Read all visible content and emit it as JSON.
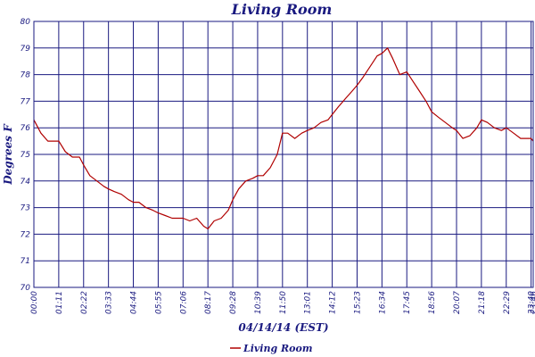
{
  "chart_data": {
    "type": "line",
    "title": "Living Room",
    "xlabel": "04/14/14 (EST)",
    "ylabel": "Degrees F",
    "x_tick_labels": [
      "00:00",
      "01:11",
      "02:22",
      "03:33",
      "04:44",
      "05:55",
      "07:06",
      "08:17",
      "09:28",
      "10:39",
      "11:50",
      "13:01",
      "14:12",
      "15:23",
      "16:34",
      "17:45",
      "18:56",
      "20:07",
      "21:18",
      "22:29",
      "23:40",
      "23:46"
    ],
    "y_ticks": [
      70,
      71,
      72,
      73,
      74,
      75,
      76,
      77,
      78,
      79,
      80
    ],
    "ylim": [
      70,
      80
    ],
    "xlim": [
      "00:00",
      "23:46"
    ],
    "grid": true,
    "legend_position": "bottom-center",
    "colors": {
      "line": "#b00000",
      "grid": "#1a1a80",
      "text": "#1a1a80"
    },
    "series": [
      {
        "name": "Living Room",
        "x": [
          "00:00",
          "00:20",
          "00:40",
          "01:11",
          "01:30",
          "01:50",
          "02:10",
          "02:22",
          "02:40",
          "03:00",
          "03:20",
          "03:33",
          "03:50",
          "04:10",
          "04:30",
          "04:44",
          "05:00",
          "05:20",
          "05:40",
          "05:55",
          "06:15",
          "06:35",
          "06:55",
          "07:06",
          "07:25",
          "07:45",
          "08:05",
          "08:17",
          "08:35",
          "08:55",
          "09:15",
          "09:28",
          "09:45",
          "10:05",
          "10:25",
          "10:39",
          "10:55",
          "11:15",
          "11:35",
          "11:50",
          "12:05",
          "12:25",
          "12:45",
          "13:01",
          "13:20",
          "13:40",
          "14:00",
          "14:12",
          "14:30",
          "14:50",
          "15:10",
          "15:23",
          "15:40",
          "16:00",
          "16:20",
          "16:34",
          "16:50",
          "17:05",
          "17:25",
          "17:45",
          "18:00",
          "18:20",
          "18:40",
          "18:56",
          "19:15",
          "19:35",
          "19:55",
          "20:07",
          "20:25",
          "20:45",
          "21:05",
          "21:18",
          "21:35",
          "21:55",
          "22:15",
          "22:29",
          "22:50",
          "23:10",
          "23:30",
          "23:40",
          "23:46"
        ],
        "y": [
          76.3,
          75.8,
          75.5,
          75.5,
          75.1,
          74.9,
          74.9,
          74.6,
          74.2,
          74.0,
          73.8,
          73.7,
          73.6,
          73.5,
          73.3,
          73.2,
          73.2,
          73.0,
          72.9,
          72.8,
          72.7,
          72.6,
          72.6,
          72.6,
          72.5,
          72.6,
          72.3,
          72.2,
          72.5,
          72.6,
          72.9,
          73.3,
          73.7,
          74.0,
          74.1,
          74.2,
          74.2,
          74.5,
          75.0,
          75.8,
          75.8,
          75.6,
          75.8,
          75.9,
          76.0,
          76.2,
          76.3,
          76.5,
          76.8,
          77.1,
          77.4,
          77.6,
          77.9,
          78.3,
          78.7,
          78.8,
          79.0,
          78.6,
          78.0,
          78.1,
          77.8,
          77.4,
          77.0,
          76.6,
          76.4,
          76.2,
          76.0,
          75.9,
          75.6,
          75.7,
          76.0,
          76.3,
          76.2,
          76.0,
          75.9,
          76.0,
          75.8,
          75.6,
          75.6,
          75.6,
          75.5
        ]
      }
    ]
  }
}
